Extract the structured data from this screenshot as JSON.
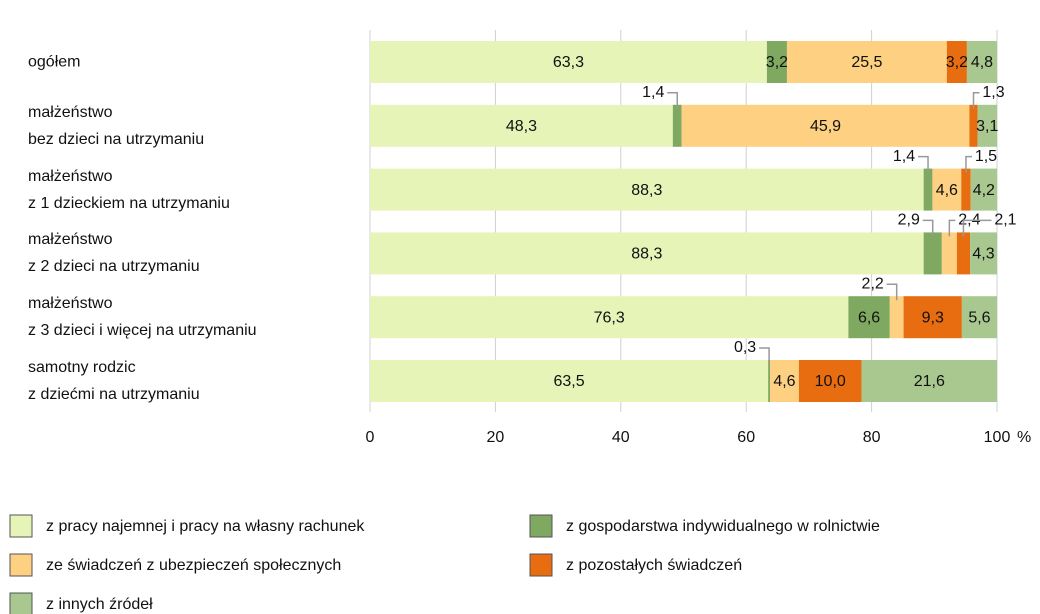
{
  "chart_data": {
    "type": "stacked_barh",
    "categories": [
      "ogółem",
      "małżeństwo\nbez dzieci na utrzymaniu",
      "małżeństwo\nz 1 dzieckiem na utrzymaniu",
      "małżeństwo\nz 2 dzieci na utrzymaniu",
      "małżeństwo\nz 3 dzieci i więcej na utrzymaniu",
      "samotny rodzic\nz dziećmi na utrzymaniu"
    ],
    "series": [
      {
        "name": "z pracy najemnej i pracy na własny rachunek",
        "color": "#e6f4b8",
        "values": [
          63.3,
          48.3,
          88.3,
          88.3,
          76.3,
          63.5
        ],
        "value_labels": [
          "63,3",
          "48,3",
          "88,3",
          "88,3",
          "76,3",
          "63,5"
        ]
      },
      {
        "name": "z gospodarstwa indywidualnego w rolnictwie",
        "color": "#7fa860",
        "values": [
          3.2,
          1.4,
          1.4,
          2.9,
          6.6,
          0.3
        ],
        "value_labels": [
          "3,2",
          "1,4",
          "1,4",
          "2,9",
          "6,6",
          "0,3"
        ]
      },
      {
        "name": "ze świadczeń z ubezpieczeń społecznych",
        "color": "#fdd082",
        "values": [
          25.5,
          45.9,
          4.6,
          2.4,
          2.2,
          4.6
        ],
        "value_labels": [
          "25,5",
          "45,9",
          "4,6",
          "2,4",
          "2,2",
          "4,6"
        ]
      },
      {
        "name": "z pozostałych świadczeń",
        "color": "#e86d10",
        "values": [
          3.2,
          1.3,
          1.5,
          2.1,
          9.3,
          10.0
        ],
        "value_labels": [
          "3,2",
          "1,3",
          "1,5",
          "2,1",
          "9,3",
          "10,0"
        ]
      },
      {
        "name": "z innych źródeł",
        "color": "#a8c890",
        "values": [
          4.8,
          3.1,
          4.2,
          4.3,
          5.6,
          21.6
        ],
        "value_labels": [
          "4,8",
          "3,1",
          "4,2",
          "4,3",
          "5,6",
          "21,6"
        ]
      }
    ],
    "xlim": [
      0,
      100
    ],
    "xticks": [
      0,
      20,
      40,
      60,
      80,
      100
    ],
    "x_unit": "%",
    "grid": true
  }
}
